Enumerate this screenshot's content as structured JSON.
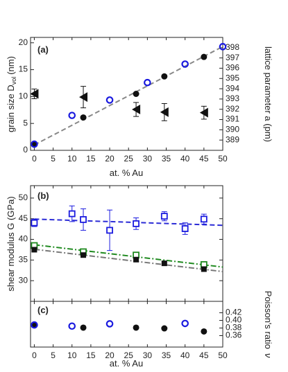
{
  "chart_data": [
    {
      "panel": "(a)",
      "type": "scatter",
      "xlabel": "at. % Au",
      "ylabel": "grain size D",
      "ylabel_sub": "vol",
      "ylabel_unit": "(nm)",
      "y2label": "lattice parameter a (pm)",
      "xlim": [
        -1,
        50
      ],
      "ylim": [
        0,
        21
      ],
      "y2lim": [
        388,
        399
      ],
      "x_ticks": [
        "0",
        "5",
        "10",
        "15",
        "20",
        "25",
        "30",
        "35",
        "40",
        "45",
        "50"
      ],
      "y_ticks": [
        "0",
        "5",
        "10",
        "15",
        "20"
      ],
      "y2_ticks": [
        "389",
        "390",
        "391",
        "392",
        "393",
        "394",
        "395",
        "396",
        "397",
        "398"
      ],
      "series": [
        {
          "marker": "triangle-left",
          "color": "#111111",
          "axis": "left",
          "points": [
            {
              "x": 0,
              "y": 10.5,
              "err": 0.9
            },
            {
              "x": 13,
              "y": 9.9,
              "err": 2.0
            },
            {
              "x": 27,
              "y": 7.6,
              "err": 1.3
            },
            {
              "x": 34.5,
              "y": 7.1,
              "err": 1.6
            },
            {
              "x": 45,
              "y": 7.0,
              "err": 1.2
            }
          ]
        },
        {
          "marker": "circle-filled",
          "color": "#111111",
          "axis": "right",
          "points": [
            {
              "x": 0,
              "y": 388.6
            },
            {
              "x": 13,
              "y": 391.2
            },
            {
              "x": 27,
              "y": 393.5
            },
            {
              "x": 34.5,
              "y": 395.2
            },
            {
              "x": 45,
              "y": 397.1
            }
          ]
        },
        {
          "marker": "circle-open",
          "color": "#1a1adf",
          "axis": "right",
          "points": [
            {
              "x": 0,
              "y": 388.6
            },
            {
              "x": 10,
              "y": 391.4
            },
            {
              "x": 20,
              "y": 392.9
            },
            {
              "x": 30,
              "y": 394.6
            },
            {
              "x": 40,
              "y": 396.4
            },
            {
              "x": 50,
              "y": 398.1
            }
          ]
        }
      ],
      "fit_lines": [
        {
          "color": "#888888",
          "style": "dashed",
          "axis": "left",
          "from": [
            0,
            1.0
          ],
          "to": [
            50,
            19.3
          ]
        }
      ]
    },
    {
      "panel": "(b)",
      "type": "scatter",
      "ylabel": "shear modulus G (GPa)",
      "xlim": [
        -1,
        50
      ],
      "ylim": [
        25,
        53
      ],
      "y_ticks": [
        "30",
        "35",
        "40",
        "45",
        "50"
      ],
      "series": [
        {
          "marker": "square-open",
          "color": "#1a1adf",
          "points": [
            {
              "x": 0,
              "y": 44.0,
              "err": 0.9
            },
            {
              "x": 10,
              "y": 46.2,
              "err": 1.9
            },
            {
              "x": 13,
              "y": 44.8,
              "err": 2.6
            },
            {
              "x": 20,
              "y": 42.2,
              "err": 4.9
            },
            {
              "x": 27,
              "y": 43.8,
              "err": 1.4
            },
            {
              "x": 34.5,
              "y": 45.6,
              "err": 1.1
            },
            {
              "x": 40,
              "y": 42.6,
              "err": 1.4
            },
            {
              "x": 45,
              "y": 44.9,
              "err": 1.2
            }
          ]
        },
        {
          "marker": "square-open",
          "color": "#1f8a1f",
          "points": [
            {
              "x": 0,
              "y": 38.5
            },
            {
              "x": 13,
              "y": 37.0
            },
            {
              "x": 27,
              "y": 36.2
            },
            {
              "x": 45,
              "y": 33.9
            }
          ]
        },
        {
          "marker": "square-filled",
          "color": "#111111",
          "points": [
            {
              "x": 0,
              "y": 37.5
            },
            {
              "x": 13,
              "y": 36.2
            },
            {
              "x": 27,
              "y": 35.1
            },
            {
              "x": 34.5,
              "y": 34.2
            },
            {
              "x": 45,
              "y": 32.8
            }
          ]
        }
      ],
      "fit_lines": [
        {
          "color": "#2b2bd6",
          "style": "dashed",
          "from": [
            0,
            44.9
          ],
          "to": [
            50,
            43.4
          ]
        },
        {
          "color": "#1f8a1f",
          "style": "dashdot",
          "from": [
            0,
            38.7
          ],
          "to": [
            50,
            33.3
          ]
        },
        {
          "color": "#777777",
          "style": "dashdot",
          "from": [
            0,
            37.6
          ],
          "to": [
            50,
            32.2
          ]
        }
      ]
    },
    {
      "panel": "(c)",
      "type": "scatter",
      "xlabel": "at. % Au",
      "y2label": "Poisson's ratio",
      "y2label_symbol": "ν",
      "xlim": [
        -1,
        50
      ],
      "y2lim": [
        0.33,
        0.45
      ],
      "x_ticks": [
        "0",
        "5",
        "10",
        "15",
        "20",
        "25",
        "30",
        "35",
        "40",
        "45",
        "50"
      ],
      "y2_ticks": [
        "0.36",
        "0.38",
        "0.40",
        "0.42"
      ],
      "series": [
        {
          "marker": "circle-filled",
          "color": "#111111",
          "points": [
            {
              "x": 0,
              "y": 0.387
            },
            {
              "x": 13,
              "y": 0.381
            },
            {
              "x": 27,
              "y": 0.381
            },
            {
              "x": 34.5,
              "y": 0.379
            },
            {
              "x": 45,
              "y": 0.371
            }
          ]
        },
        {
          "marker": "circle-open",
          "color": "#1a1adf",
          "points": [
            {
              "x": 0,
              "y": 0.388
            },
            {
              "x": 10,
              "y": 0.385
            },
            {
              "x": 20,
              "y": 0.391
            },
            {
              "x": 40,
              "y": 0.392
            }
          ]
        }
      ]
    }
  ]
}
